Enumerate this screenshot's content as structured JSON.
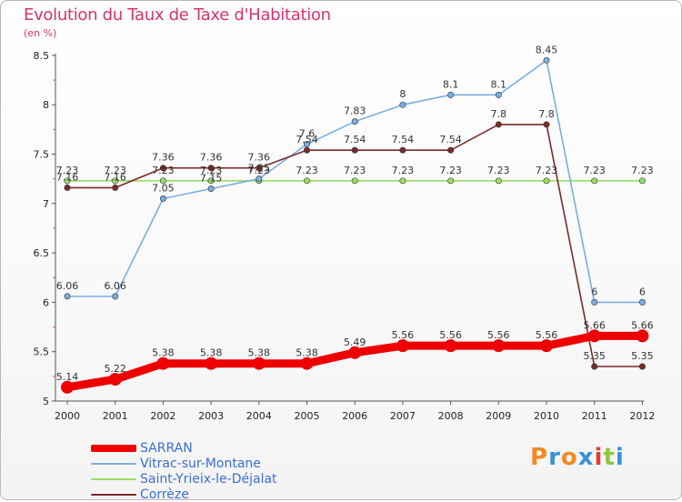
{
  "header": {
    "title": "Evolution du Taux de Taxe d'Habitation",
    "unit": "(en %)"
  },
  "logo": {
    "text": "Proxiti",
    "letters": [
      "P",
      "r",
      "o",
      "x",
      "i",
      "t",
      "i"
    ],
    "colors": [
      "#f08a24",
      "#3a8fd8",
      "#f08a24",
      "#3a8fd8",
      "#e63a3a",
      "#8cc63f",
      "#3a8fd8"
    ]
  },
  "chart_data": {
    "type": "line",
    "categories": [
      "2000",
      "2001",
      "2002",
      "2003",
      "2004",
      "2005",
      "2006",
      "2007",
      "2008",
      "2009",
      "2010",
      "2011",
      "2012"
    ],
    "ylim": [
      5,
      8.5
    ],
    "yticks": [
      "5",
      "5.5",
      "6",
      "6.5",
      "7",
      "7.5",
      "8",
      "8.5"
    ],
    "grid": false,
    "legend_position": "bottom-left",
    "series": [
      {
        "name": "SARRAN",
        "color": "#ee0000",
        "values": [
          5.14,
          5.22,
          5.38,
          5.38,
          5.38,
          5.38,
          5.49,
          5.56,
          5.56,
          5.56,
          5.56,
          5.66,
          5.66
        ],
        "labels": [
          "5.14",
          "5.22",
          "5.38",
          "5.38",
          "5.38",
          "5.38",
          "5.49",
          "5.56",
          "5.56",
          "5.56",
          "5.56",
          "5.66",
          "5.66"
        ]
      },
      {
        "name": "Vitrac-sur-Montane",
        "color": "#7aaee0",
        "values": [
          6.06,
          6.06,
          7.05,
          7.15,
          7.25,
          7.6,
          7.83,
          8.0,
          8.1,
          8.1,
          8.45,
          6.0,
          6.0
        ],
        "labels": [
          "6.06",
          "6.06",
          "7.05",
          "7.15",
          "7.25",
          "7.6",
          "7.83",
          "8",
          "8.1",
          "8.1",
          "8.45",
          "6",
          "6"
        ]
      },
      {
        "name": "Saint-Yrieix-le-Déjalat",
        "color": "#99dd66",
        "values": [
          7.23,
          7.23,
          7.23,
          7.23,
          7.23,
          7.23,
          7.23,
          7.23,
          7.23,
          7.23,
          7.23,
          7.23,
          7.23
        ],
        "labels": [
          "7.23",
          "7.23",
          "7.23",
          "7.23",
          "7.23",
          "7.23",
          "7.23",
          "7.23",
          "7.23",
          "7.23",
          "7.23",
          "7.23",
          "7.23"
        ]
      },
      {
        "name": "Corrèze",
        "color": "#7a2a2a",
        "values": [
          7.16,
          7.16,
          7.36,
          7.36,
          7.36,
          7.54,
          7.54,
          7.54,
          7.54,
          7.8,
          7.8,
          5.35,
          5.35
        ],
        "labels": [
          "7.16",
          "7.16",
          "7.36",
          "7.36",
          "7.36",
          "7.54",
          "7.54",
          "7.54",
          "7.54",
          "7.8",
          "7.8",
          "5.35",
          "5.35"
        ]
      }
    ]
  }
}
